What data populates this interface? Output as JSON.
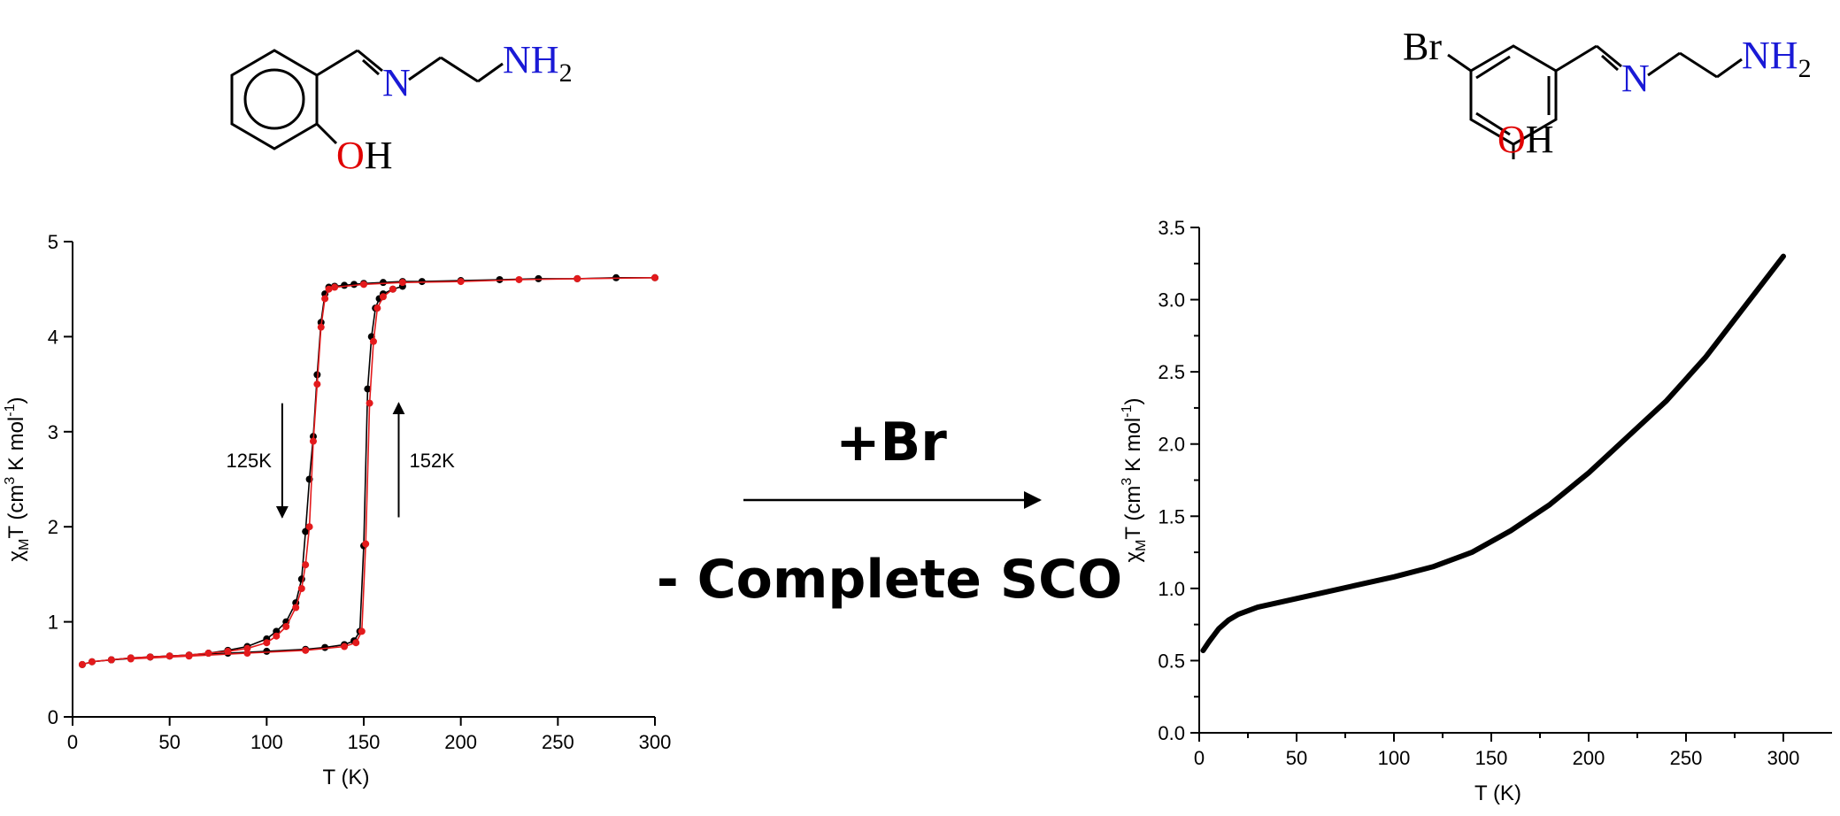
{
  "reaction": {
    "reagent_label": "+Br",
    "result_label": "- Complete SCO"
  },
  "molecules": {
    "left": {
      "amine": "NH",
      "amine_sub": "2",
      "imine": "N",
      "hydroxyl_o": "O",
      "hydroxyl_h": "H"
    },
    "right": {
      "halogen": "Br",
      "amine": "NH",
      "amine_sub": "2",
      "imine": "N",
      "hydroxyl_o": "O",
      "hydroxyl_h": "H"
    }
  },
  "colors": {
    "heteroatom_n": "#1a1ad6",
    "heteroatom_o": "#e00000",
    "red_series": "#e31a1c",
    "black_series": "#000000"
  },
  "chart_data": [
    {
      "type": "scatter",
      "xlabel_main": "T (K)",
      "ylabel_parts": [
        "χ",
        "M",
        "T (cm",
        "3",
        " K mol",
        "-1",
        ")"
      ],
      "xlim": [
        0,
        300
      ],
      "ylim": [
        0,
        5
      ],
      "xticks": [
        0,
        50,
        100,
        150,
        200,
        250,
        300
      ],
      "yticks": [
        0,
        1,
        2,
        3,
        4,
        5
      ],
      "annotations": [
        {
          "text": "125K",
          "x": 108,
          "y": 2.7,
          "arrow": "down"
        },
        {
          "text": "152K",
          "x": 168,
          "y": 2.7,
          "arrow": "up"
        }
      ],
      "series": [
        {
          "color": "#000000",
          "x": [
            5,
            10,
            20,
            30,
            40,
            50,
            60,
            70,
            80,
            90,
            100,
            105,
            110,
            115,
            118,
            120,
            122,
            124,
            126,
            128,
            130,
            132,
            135,
            140,
            145,
            150,
            160,
            170,
            180,
            200,
            220,
            240,
            260,
            280,
            300
          ],
          "y": [
            0.55,
            0.58,
            0.6,
            0.62,
            0.63,
            0.64,
            0.65,
            0.67,
            0.7,
            0.74,
            0.82,
            0.9,
            1.0,
            1.2,
            1.45,
            1.95,
            2.5,
            2.95,
            3.6,
            4.15,
            4.45,
            4.52,
            4.53,
            4.54,
            4.55,
            4.56,
            4.57,
            4.58,
            4.58,
            4.59,
            4.6,
            4.61,
            4.61,
            4.62,
            4.62
          ]
        },
        {
          "color": "#000000",
          "x": [
            20,
            40,
            60,
            80,
            100,
            120,
            130,
            140,
            145,
            148,
            150,
            152,
            154,
            156,
            158,
            160,
            165,
            170
          ],
          "y": [
            0.6,
            0.63,
            0.65,
            0.67,
            0.69,
            0.71,
            0.73,
            0.76,
            0.8,
            0.9,
            1.8,
            3.45,
            4.0,
            4.3,
            4.4,
            4.45,
            4.5,
            4.53
          ]
        },
        {
          "color": "#e31a1c",
          "x": [
            5,
            10,
            20,
            30,
            40,
            50,
            60,
            70,
            80,
            90,
            100,
            105,
            110,
            115,
            118,
            120,
            122,
            124,
            126,
            128,
            130,
            132,
            135,
            150,
            170,
            200,
            230,
            260,
            300
          ],
          "y": [
            0.55,
            0.58,
            0.6,
            0.62,
            0.63,
            0.64,
            0.65,
            0.67,
            0.69,
            0.72,
            0.78,
            0.85,
            0.95,
            1.15,
            1.35,
            1.6,
            2.0,
            2.9,
            3.5,
            4.1,
            4.4,
            4.5,
            4.52,
            4.55,
            4.57,
            4.58,
            4.6,
            4.61,
            4.62
          ]
        },
        {
          "color": "#e31a1c",
          "x": [
            30,
            60,
            90,
            120,
            140,
            146,
            149,
            151,
            153,
            155,
            157,
            160,
            165
          ],
          "y": [
            0.61,
            0.64,
            0.67,
            0.7,
            0.74,
            0.78,
            0.9,
            1.82,
            3.3,
            3.95,
            4.3,
            4.42,
            4.5
          ]
        }
      ]
    },
    {
      "type": "scatter",
      "xlabel_main": "T (K)",
      "ylabel_parts": [
        "χ",
        "M",
        "T (cm",
        "3",
        " K mol",
        "-1",
        ")"
      ],
      "xlim": [
        0,
        325
      ],
      "ylim": [
        0,
        3.5
      ],
      "xticks": [
        0,
        50,
        100,
        150,
        200,
        250,
        300
      ],
      "yticks": [
        0.0,
        0.5,
        1.0,
        1.5,
        2.0,
        2.5,
        3.0,
        3.5
      ],
      "ytick_labels": [
        "0.0",
        "0.5",
        "1.0",
        "1.5",
        "2.0",
        "2.5",
        "3.0",
        "3.5"
      ],
      "series": [
        {
          "color": "#000000",
          "x": [
            2,
            5,
            10,
            15,
            20,
            30,
            40,
            50,
            60,
            80,
            100,
            120,
            140,
            160,
            180,
            200,
            220,
            240,
            260,
            280,
            300
          ],
          "y": [
            0.57,
            0.63,
            0.72,
            0.78,
            0.82,
            0.87,
            0.9,
            0.93,
            0.96,
            1.02,
            1.08,
            1.15,
            1.25,
            1.4,
            1.58,
            1.8,
            2.05,
            2.3,
            2.6,
            2.95,
            3.3
          ]
        }
      ]
    }
  ]
}
